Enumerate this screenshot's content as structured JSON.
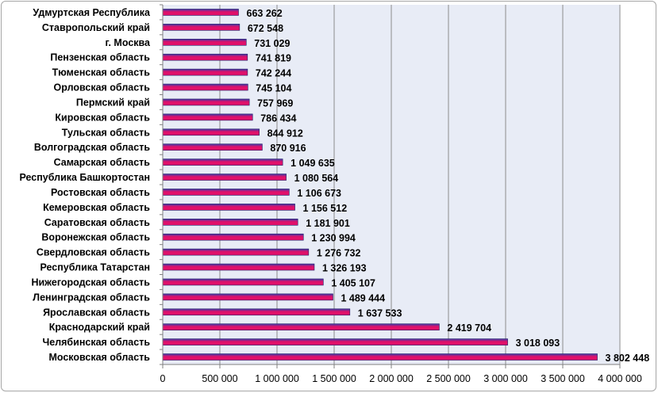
{
  "chart_data": {
    "type": "bar",
    "orientation": "horizontal",
    "categories": [
      "Удмуртская Республика",
      "Ставропольский край",
      "г. Москва",
      "Пензенская область",
      "Тюменская область",
      "Орловская область",
      "Пермский край",
      "Кировская область",
      "Тульская область",
      "Волгоградская область",
      "Самарская область",
      "Республика Башкортостан",
      "Ростовская область",
      "Кемеровская область",
      "Саратовская область",
      "Воронежская область",
      "Свердловская область",
      "Республика Татарстан",
      "Нижегородская область",
      "Ленинградская область",
      "Ярославская область",
      "Краснодарский край",
      "Челябинская область",
      "Московская область"
    ],
    "values": [
      663262,
      672548,
      731029,
      741819,
      742244,
      745104,
      757969,
      786434,
      844912,
      870916,
      1049635,
      1080564,
      1106673,
      1156512,
      1181901,
      1230994,
      1276732,
      1326193,
      1405107,
      1489444,
      1637533,
      2419704,
      3018093,
      3802448
    ],
    "value_labels": [
      "663 262",
      "672 548",
      "731 029",
      "741 819",
      "742 244",
      "745 104",
      "757 969",
      "786 434",
      "844 912",
      "870 916",
      "1 049 635",
      "1 080 564",
      "1 106 673",
      "1 156 512",
      "1 181 901",
      "1 230 994",
      "1 276 732",
      "1 326 193",
      "1 405 107",
      "1 489 444",
      "1 637 533",
      "2 419 704",
      "3 018 093",
      "3 802 448"
    ],
    "x_ticks": [
      0,
      500000,
      1000000,
      1500000,
      2000000,
      2500000,
      3000000,
      3500000,
      4000000
    ],
    "x_tick_labels": [
      "0",
      "500 000",
      "1 000 000",
      "1 500 000",
      "2 000 000",
      "2 500 000",
      "3 000 000",
      "3 500 000",
      "4 000 000"
    ],
    "xlim": [
      0,
      4000000
    ],
    "title": "",
    "xlabel": "",
    "ylabel": "",
    "grid": true,
    "legend": "none",
    "colors": {
      "plot_background": "#e8ecf6",
      "gridline": "#8c8c8c",
      "bar_top": "#3a3aa8",
      "bar_bottom": "#e0106a"
    }
  }
}
